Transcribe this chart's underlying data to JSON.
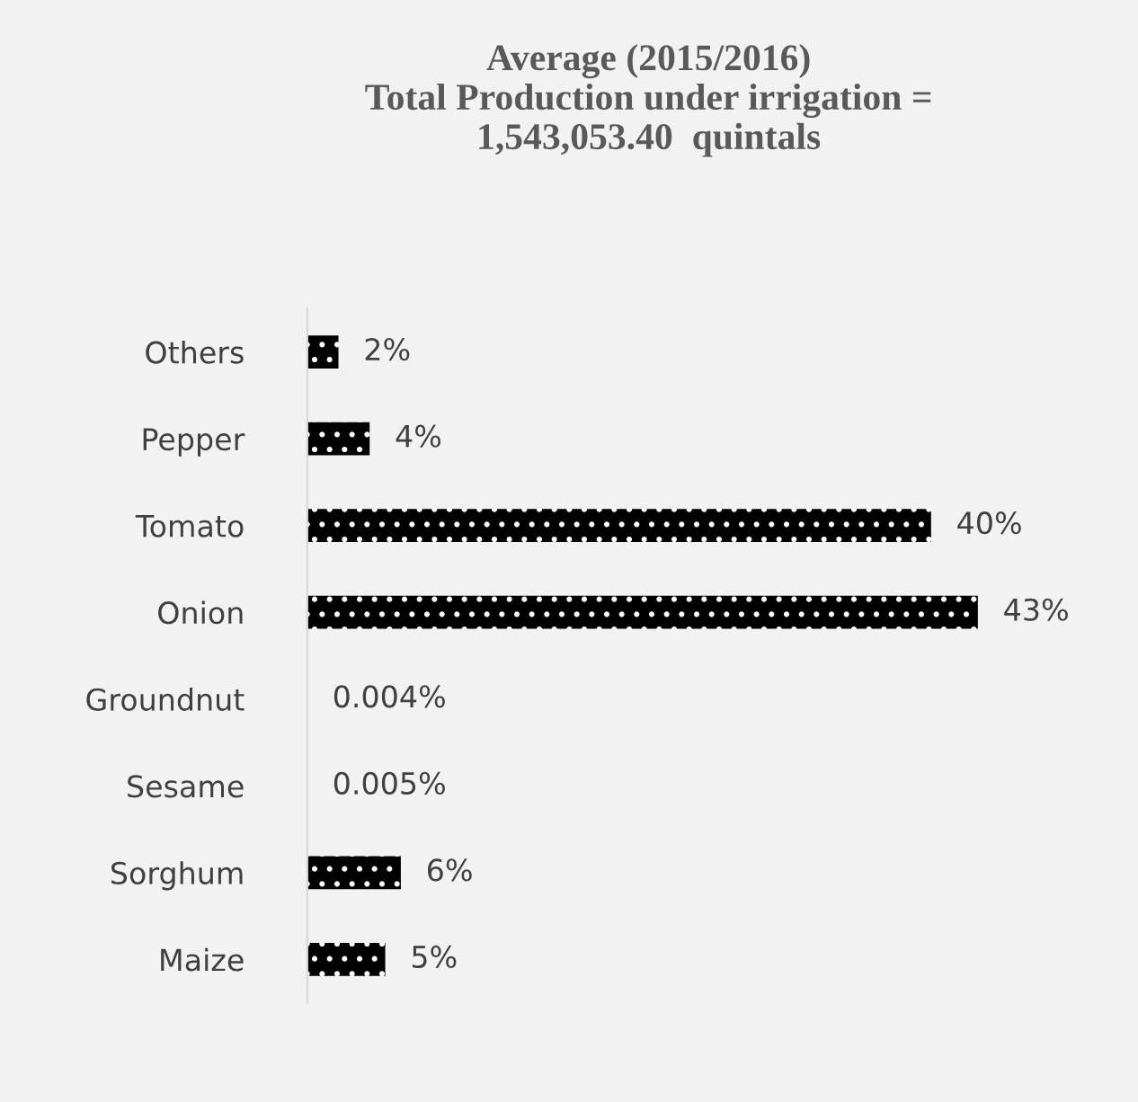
{
  "chart_data": {
    "type": "bar",
    "orientation": "horizontal",
    "title": "Average (2015/2016)\nTotal Production under irrigation =\n1,543,053.40  quintals",
    "categories": [
      "Others",
      "Pepper",
      "Tomato",
      "Onion",
      "Groundnut",
      "Sesame",
      "Sorghum",
      "Maize"
    ],
    "values": [
      2,
      4,
      40,
      43,
      0.004,
      0.005,
      6,
      5
    ],
    "value_labels": [
      "2%",
      "4%",
      "40%",
      "43%",
      "0.004%",
      "0.005%",
      "6%",
      "5%"
    ],
    "color": "#000000",
    "tick_labels": "y",
    "grid": false,
    "legend": false
  }
}
